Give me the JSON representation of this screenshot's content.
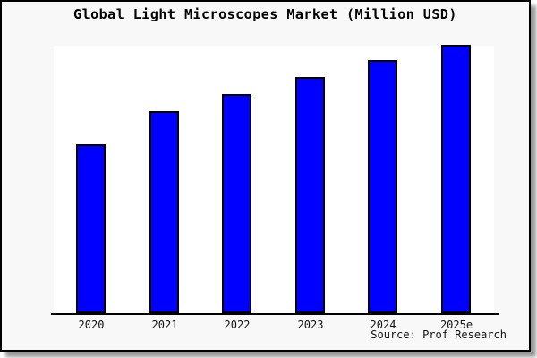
{
  "title": "Global Light Microscopes Market (Million USD)",
  "source_note": "Source: Prof Research",
  "colors": {
    "card_bg": "#f8f8f8",
    "card_border": "#000000",
    "shadow": "#999999",
    "plot_bg": "#ffffff",
    "axis": "#000000",
    "bar_fill": "#0000ff",
    "bar_border": "#000000",
    "text": "#000000"
  },
  "chart_data": {
    "type": "bar",
    "title": "Global Light Microscopes Market (Million USD)",
    "categories": [
      "2020",
      "2021",
      "2022",
      "2023",
      "2024",
      "2025e"
    ],
    "values": [
      63,
      75.3,
      81.7,
      88,
      94.3,
      100
    ],
    "value_scale": "relative - no y-axis ticks or data labels are shown; values normalized so tallest bar (2025e) = 100",
    "xlabel": "",
    "ylabel": "",
    "ylim": [
      0,
      100
    ],
    "grid": false,
    "legend": null,
    "source": "Source: Prof Research"
  }
}
